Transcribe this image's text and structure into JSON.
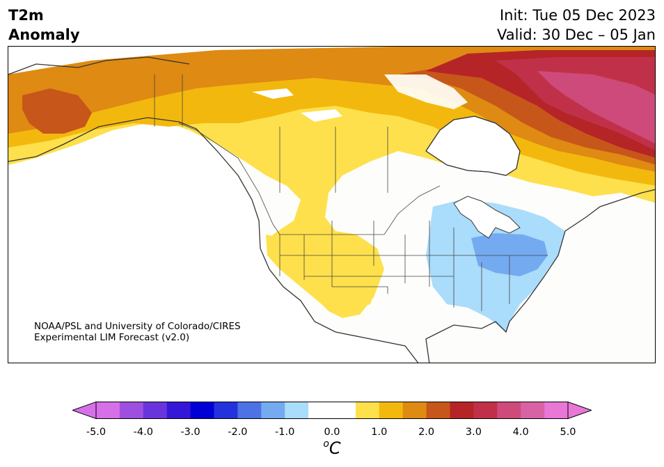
{
  "header": {
    "variable_line1": "T2m",
    "variable_line2": "Anomaly",
    "init": "Init: Tue 05 Dec 2023",
    "valid": "Valid: 30 Dec – 05 Jan"
  },
  "credit": {
    "line1": "NOAA/PSL and University of Colorado/CIRES",
    "line2": "Experimental LIM Forecast (v2.0)"
  },
  "colorbar": {
    "unit_sup": "o",
    "unit": "C",
    "ticks": [
      "-5.0",
      "-4.0",
      "-3.0",
      "-2.0",
      "-1.0",
      "0.0",
      "1.0",
      "2.0",
      "3.0",
      "4.0",
      "5.0"
    ],
    "min": -5.0,
    "max": 5.0,
    "step": 0.5,
    "colors": [
      "#d770e8",
      "#9e4fdf",
      "#6a34dc",
      "#3517d6",
      "#0000d6",
      "#2332dd",
      "#4c72e6",
      "#74aaf0",
      "#aadcfb",
      "#ffffff",
      "#ffffff",
      "#fee04c",
      "#f3b80e",
      "#de8a13",
      "#c7561a",
      "#b52426",
      "#c03149",
      "#ce4a7a",
      "#d962a4",
      "#e877d6"
    ]
  },
  "map": {
    "region": "North America",
    "features": [
      "warm anomaly over Canada and Alaska",
      "strongest warmth over Hudson Bay and Quebec",
      "warm anomaly over the western US",
      "cool anomaly over the Ohio Valley and Southeast US"
    ]
  }
}
